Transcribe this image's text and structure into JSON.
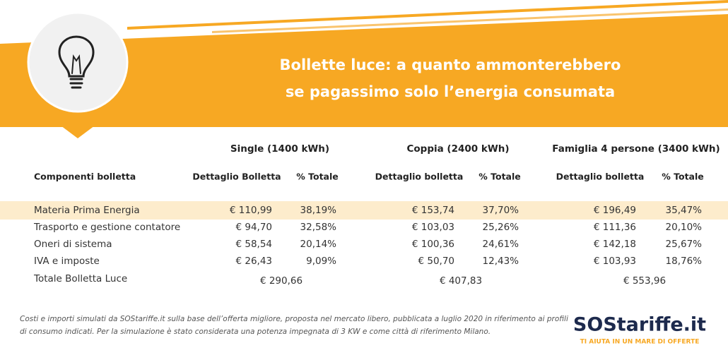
{
  "header": {
    "title": [
      "Bollette luce: a quanto ammonterebbero",
      "se pagassimo solo l’energia consumata"
    ]
  },
  "table": {
    "groups": [
      "Single (1400 kWh)",
      "Coppia (2400 kWh)",
      "Famiglia 4 persone (3400 kWh)"
    ],
    "columns": [
      "Componenti bolletta",
      "Dettaglio Bolletta",
      "% Totale",
      "Dettaglio bolletta",
      "% Totale",
      "Dettaglio bolletta",
      "% Totale"
    ],
    "rows": [
      [
        "Materia Prima Energia",
        "€ 110,99",
        "38,19%",
        "€ 153,74",
        "37,70%",
        "€ 196,49",
        "35,47%"
      ],
      [
        "Trasporto e gestione contatore",
        "€ 94,70",
        "32,58%",
        "€ 103,03",
        "25,26%",
        "€ 111,36",
        "20,10%"
      ],
      [
        "Oneri di sistema",
        "€ 58,54",
        "20,14%",
        "€ 100,36",
        "24,61%",
        "€ 142,18",
        "25,67%"
      ],
      [
        "IVA e imposte",
        "€ 26,43",
        "9,09%",
        "€ 50,70",
        "12,43%",
        "€ 103,93",
        "18,76%"
      ]
    ],
    "total": {
      "label": "Totale Bolletta Luce",
      "values": [
        "€ 290,66",
        "€ 407,83",
        "€ 553,96"
      ]
    }
  },
  "footnote": [
    "Costi e importi simulati da SOStariffe.it sulla base dell’offerta migliore, proposta nel mercato libero, pubblicata a luglio 2020 in riferimento ai profili",
    "di consumo indicati. Per la simulazione è stato considerata una potenza impegnata di 3 KW e come città di riferimento Milano."
  ],
  "logo": {
    "name": "SOStariffe.it",
    "tagline": "TI AIUTA IN UN MARE DI OFFERTE"
  }
}
